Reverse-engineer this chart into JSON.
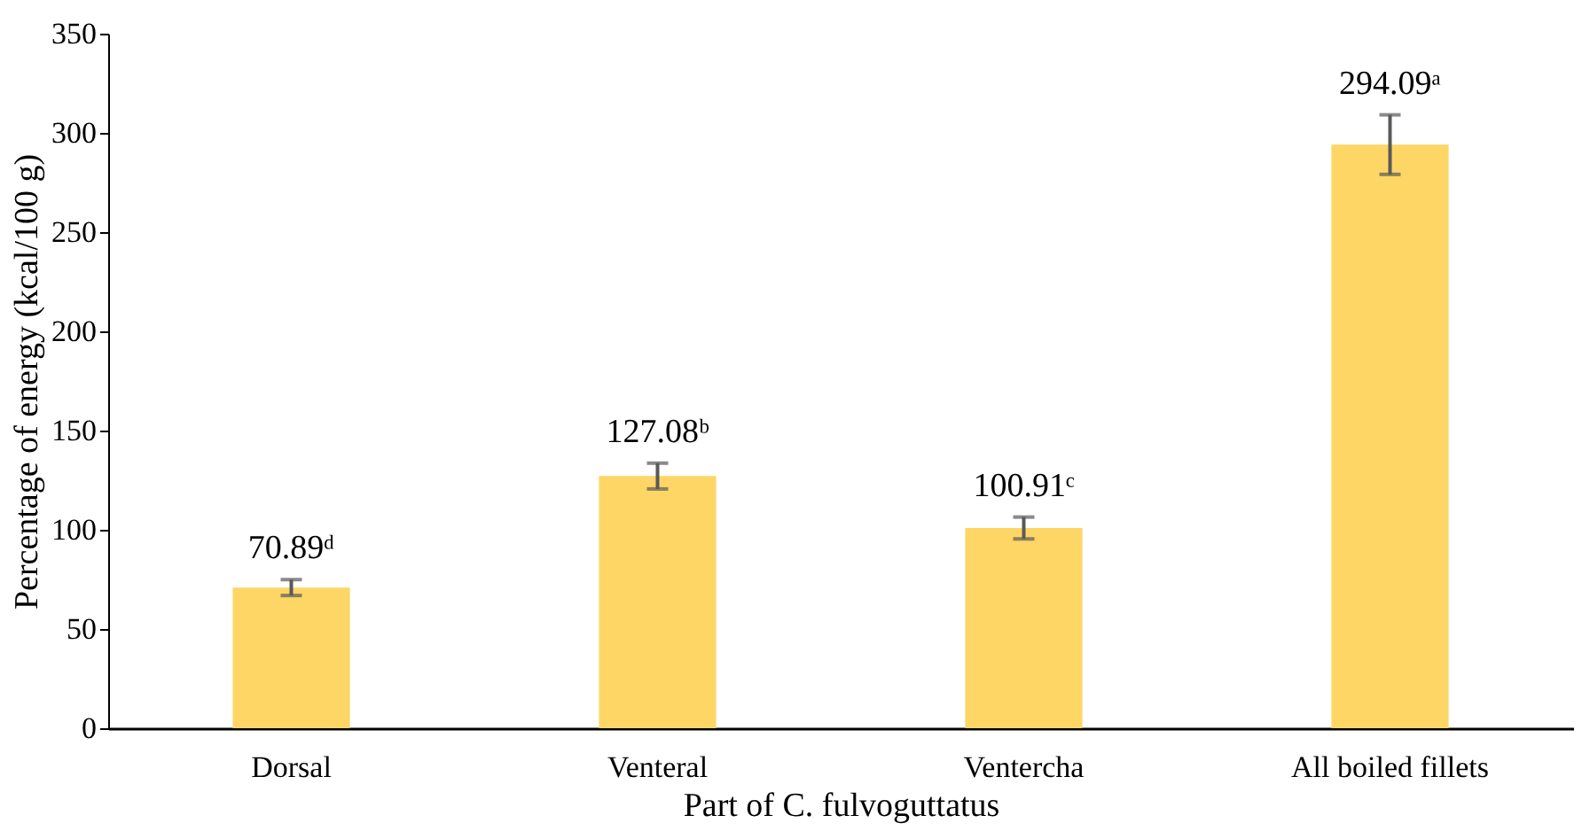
{
  "chart_data": {
    "type": "bar",
    "xlabel": "Part of C. fulvoguttatus",
    "ylabel": "Percentage of energy (kcal/100 g)",
    "categories": [
      "Dorsal",
      "Venteral",
      "Ventercha",
      "All boiled fillets"
    ],
    "values": [
      70.89,
      127.08,
      100.91,
      294.09
    ],
    "errors": [
      4,
      6.5,
      5.5,
      15
    ],
    "value_labels": [
      "70.89ᵈ",
      "127.08ᵇ",
      "100.91ᶜ",
      "294.09ᵃ"
    ],
    "color": "#fdd666",
    "ylim": [
      0,
      350
    ],
    "yticks": [
      0,
      50,
      100,
      150,
      200,
      250,
      300,
      350
    ],
    "grid": false
  }
}
